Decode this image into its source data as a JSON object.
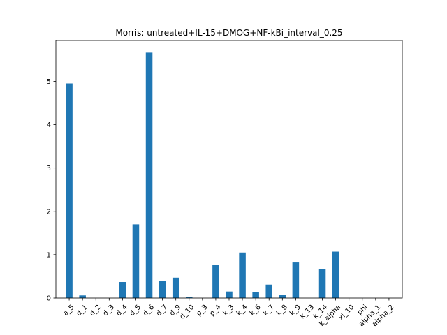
{
  "chart_data": {
    "type": "bar",
    "title": "Morris: untreated+IL-15+DMOG+NF-kBi_interval_0.25",
    "xlabel": "",
    "ylabel": "",
    "categories": [
      "a_5",
      "d_1",
      "d_2",
      "d_3",
      "d_4",
      "d_5",
      "d_6",
      "d_7",
      "d_9",
      "d_10",
      "p_3",
      "p_4",
      "k_3",
      "k_4",
      "k_6",
      "k_7",
      "k_8",
      "k_9",
      "k_13",
      "k_14",
      "k_alpha",
      "xi_10",
      "phi",
      "alpha_1",
      "alpha_2"
    ],
    "values": [
      4.95,
      0.06,
      0.0,
      0.0,
      0.37,
      1.7,
      5.66,
      0.4,
      0.47,
      0.02,
      0.0,
      0.77,
      0.15,
      1.05,
      0.13,
      0.31,
      0.08,
      0.82,
      0.0,
      0.66,
      1.07,
      0.0,
      0.0,
      0.0,
      0.0
    ],
    "ylim": [
      0,
      5.94
    ],
    "yticks": [
      0,
      1,
      2,
      3,
      4,
      5
    ],
    "grid": false,
    "bar_color": "#1f77b4",
    "xtick_rotation": 45
  }
}
